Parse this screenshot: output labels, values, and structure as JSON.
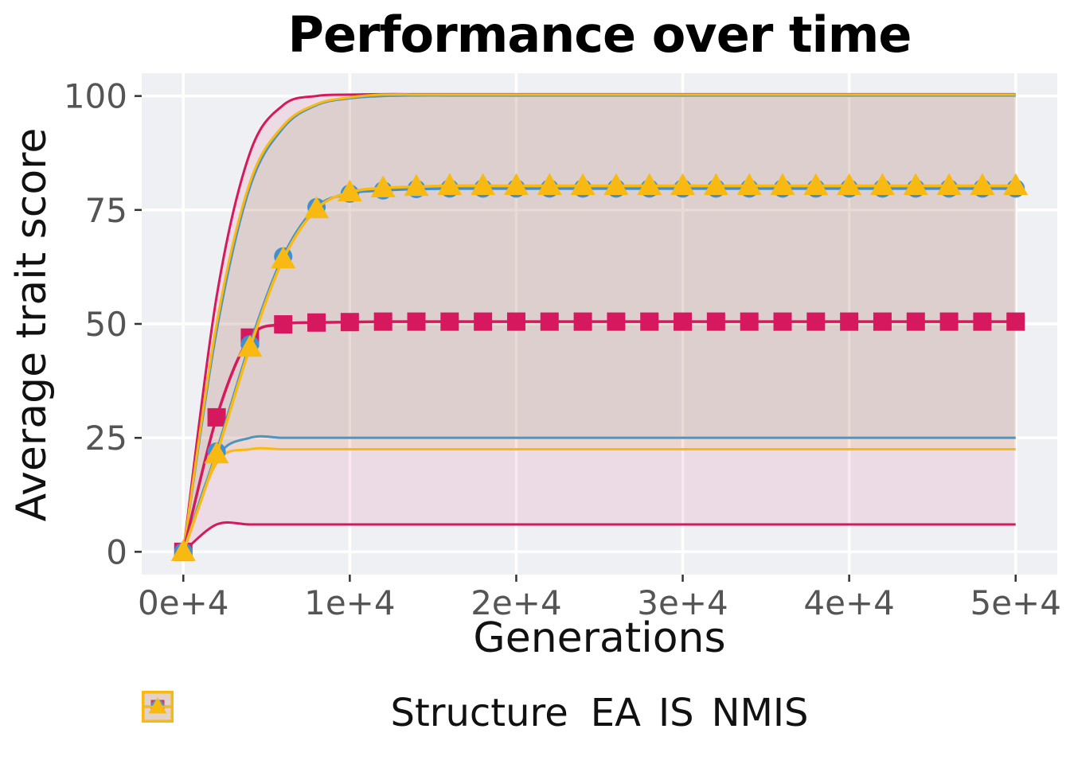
{
  "chart_data": {
    "type": "line",
    "title": "Performance over time",
    "xlabel": "Generations",
    "ylabel": "Average trait score",
    "grid": "major-white-on-gray",
    "panel_bg": "#EFF0F4",
    "grid_color": "#FFFFFF",
    "tick_label_color": "#555555",
    "tick_mark_color": "#333333",
    "x_ticks": [
      {
        "label": "0e+4",
        "value": 0
      },
      {
        "label": "1e+4",
        "value": 10000
      },
      {
        "label": "2e+4",
        "value": 20000
      },
      {
        "label": "3e+4",
        "value": 30000
      },
      {
        "label": "4e+4",
        "value": 40000
      },
      {
        "label": "5e+4",
        "value": 50000
      }
    ],
    "y_ticks": [
      {
        "label": "0",
        "value": 0
      },
      {
        "label": "25",
        "value": 25
      },
      {
        "label": "50",
        "value": 50
      },
      {
        "label": "75",
        "value": 75
      },
      {
        "label": "100",
        "value": 100
      }
    ],
    "xlim": [
      0,
      50000
    ],
    "ylim": [
      0,
      100
    ],
    "x": [
      0,
      2000,
      4000,
      6000,
      8000,
      10000,
      12000,
      14000,
      16000,
      18000,
      20000,
      22000,
      24000,
      26000,
      28000,
      30000,
      32000,
      34000,
      36000,
      38000,
      40000,
      42000,
      44000,
      46000,
      48000,
      50000
    ],
    "ribbon_alpha": 0.1,
    "legend": {
      "title": "Structure",
      "position": "bottom"
    },
    "series": [
      {
        "name": "EA",
        "color": "#D6195E",
        "marker": "square",
        "mean": [
          0,
          29.5,
          47,
          49.9,
          50.3,
          50.4,
          50.5,
          50.5,
          50.5,
          50.5,
          50.5,
          50.5,
          50.5,
          50.5,
          50.5,
          50.5,
          50.5,
          50.5,
          50.5,
          50.5,
          50.5,
          50.5,
          50.5,
          50.5,
          50.5,
          50.5
        ],
        "upper": [
          0,
          56,
          87.5,
          98,
          100,
          100.3,
          100.4,
          100.4,
          100.4,
          100.4,
          100.4,
          100.4,
          100.4,
          100.4,
          100.4,
          100.4,
          100.4,
          100.4,
          100.4,
          100.4,
          100.4,
          100.4,
          100.4,
          100.4,
          100.4,
          100.4
        ],
        "lower": [
          0,
          6,
          6,
          6,
          6,
          6,
          6,
          6,
          6,
          6,
          6,
          6,
          6,
          6,
          6,
          6,
          6,
          6,
          6,
          6,
          6,
          6,
          6,
          6,
          6,
          6
        ]
      },
      {
        "name": "IS",
        "color": "#3B90D6",
        "marker": "circle",
        "mean": [
          0,
          22,
          45.5,
          64.8,
          75.6,
          78.6,
          79.3,
          79.6,
          79.7,
          79.7,
          79.7,
          79.7,
          79.7,
          79.7,
          79.7,
          79.7,
          79.7,
          79.7,
          79.7,
          79.7,
          79.7,
          79.7,
          79.7,
          79.7,
          79.7,
          79.7
        ],
        "upper": [
          0,
          48.5,
          80,
          93,
          98,
          99.5,
          100,
          100.1,
          100.1,
          100.1,
          100.1,
          100.1,
          100.1,
          100.1,
          100.1,
          100.1,
          100.1,
          100.1,
          100.1,
          100.1,
          100.1,
          100.1,
          100.1,
          100.1,
          100.1,
          100.1
        ],
        "lower": [
          0,
          20.5,
          25,
          25,
          25,
          25,
          25,
          25,
          25,
          25,
          25,
          25,
          25,
          25,
          25,
          25,
          25,
          25,
          25,
          25,
          25,
          25,
          25,
          25,
          25,
          25
        ]
      },
      {
        "name": "NMIS",
        "color": "#F8BA12",
        "marker": "triangle",
        "mean": [
          0,
          21.4,
          44.8,
          64.2,
          75.2,
          78.9,
          79.8,
          80.1,
          80.3,
          80.3,
          80.3,
          80.3,
          80.3,
          80.3,
          80.3,
          80.3,
          80.3,
          80.3,
          80.3,
          80.3,
          80.3,
          80.3,
          80.3,
          80.3,
          80.3,
          80.3
        ],
        "upper": [
          0,
          50,
          81,
          93.5,
          98.2,
          99.7,
          100.3,
          100.3,
          100.3,
          100.3,
          100.3,
          100.3,
          100.3,
          100.3,
          100.3,
          100.3,
          100.3,
          100.3,
          100.3,
          100.3,
          100.3,
          100.3,
          100.3,
          100.3,
          100.3,
          100.3
        ],
        "lower": [
          0,
          19.5,
          22.5,
          22.5,
          22.5,
          22.5,
          22.5,
          22.5,
          22.5,
          22.5,
          22.5,
          22.5,
          22.5,
          22.5,
          22.5,
          22.5,
          22.5,
          22.5,
          22.5,
          22.5,
          22.5,
          22.5,
          22.5,
          22.5,
          22.5,
          22.5
        ]
      }
    ]
  }
}
